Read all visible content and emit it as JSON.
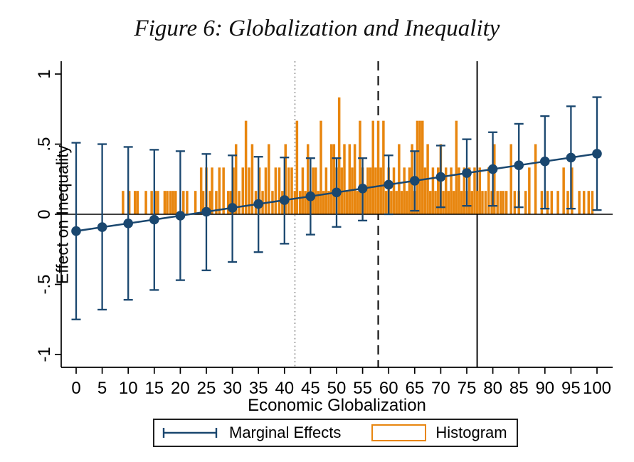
{
  "figure": {
    "title": "Figure 6: Globalization and Inequality"
  },
  "colors": {
    "marginal_effects": "#1a476f",
    "histogram": "#e8860f",
    "axis": "#000000",
    "background": "#ffffff"
  },
  "chart_data": {
    "type": "composite",
    "subtypes": [
      "line-with-error-bars",
      "histogram-bar"
    ],
    "title": "Figure 6: Globalization and Inequality",
    "xlabel": "Economic Globalization",
    "ylabel": "Effect on Inequality",
    "xlim": [
      -3,
      103
    ],
    "ylim": [
      -1.09,
      1.09
    ],
    "grid": "off",
    "x_ticks": {
      "values": [
        0,
        5,
        10,
        15,
        20,
        25,
        30,
        35,
        40,
        45,
        50,
        55,
        60,
        65,
        70,
        75,
        80,
        85,
        90,
        95,
        100
      ],
      "labels": [
        "0",
        "5",
        "10",
        "15",
        "20",
        "25",
        "30",
        "35",
        "40",
        "45",
        "50",
        "55",
        "60",
        "65",
        "70",
        "75",
        "80",
        "85",
        "90",
        "95",
        "100"
      ]
    },
    "y_ticks": {
      "values": [
        1,
        0.5,
        0,
        -0.5,
        -1
      ],
      "labels": [
        "1",
        ".5",
        "0",
        "-.5",
        "-1"
      ]
    },
    "zero_line": {
      "y": 0,
      "color": "#000000"
    },
    "reference_lines": [
      {
        "x": 42,
        "style": "dotted",
        "color": "#9a9a9a"
      },
      {
        "x": 58,
        "style": "dashed",
        "color": "#1c1c1c"
      },
      {
        "x": 77,
        "style": "solid",
        "color": "#2e2e2e"
      }
    ],
    "series": [
      {
        "name": "Marginal Effects",
        "type": "line+errorbar",
        "color": "#1a476f",
        "x": [
          0,
          5,
          10,
          15,
          20,
          25,
          30,
          35,
          40,
          45,
          50,
          55,
          60,
          65,
          70,
          75,
          80,
          85,
          90,
          95,
          100
        ],
        "y": [
          -0.12,
          -0.092,
          -0.065,
          -0.038,
          -0.01,
          0.018,
          0.046,
          0.073,
          0.101,
          0.128,
          0.156,
          0.184,
          0.211,
          0.239,
          0.266,
          0.294,
          0.322,
          0.349,
          0.377,
          0.404,
          0.432
        ],
        "ci_low": [
          -0.75,
          -0.68,
          -0.61,
          -0.54,
          -0.47,
          -0.4,
          -0.34,
          -0.27,
          -0.21,
          -0.145,
          -0.09,
          -0.045,
          0.0,
          0.025,
          0.05,
          0.06,
          0.06,
          0.05,
          0.04,
          0.04,
          0.03
        ],
        "ci_high": [
          0.51,
          0.5,
          0.48,
          0.46,
          0.45,
          0.43,
          0.42,
          0.41,
          0.405,
          0.4,
          0.4,
          0.4,
          0.42,
          0.45,
          0.49,
          0.535,
          0.585,
          0.645,
          0.7,
          0.77,
          0.835
        ]
      },
      {
        "name": "Histogram",
        "type": "bar",
        "color": "#e8860f",
        "bin_width": 0.5,
        "count_unit_height": 0.1667,
        "bars": [
          [
            9.0,
            1
          ],
          [
            10.2,
            1
          ],
          [
            11.3,
            1
          ],
          [
            11.8,
            1
          ],
          [
            13.4,
            1
          ],
          [
            14.5,
            1
          ],
          [
            15.2,
            1
          ],
          [
            15.7,
            1
          ],
          [
            17.0,
            1
          ],
          [
            17.5,
            1
          ],
          [
            18.1,
            1
          ],
          [
            18.6,
            1
          ],
          [
            19.1,
            1
          ],
          [
            20.6,
            1
          ],
          [
            21.3,
            1
          ],
          [
            22.9,
            1
          ],
          [
            24.0,
            2
          ],
          [
            24.4,
            1
          ],
          [
            25.0,
            2
          ],
          [
            25.7,
            1
          ],
          [
            26.1,
            2
          ],
          [
            26.9,
            1
          ],
          [
            27.5,
            2
          ],
          [
            28.3,
            2
          ],
          [
            29.2,
            1
          ],
          [
            29.7,
            1
          ],
          [
            30.2,
            2
          ],
          [
            30.7,
            3
          ],
          [
            31.3,
            1
          ],
          [
            32.0,
            2
          ],
          [
            32.6,
            4
          ],
          [
            33.2,
            2
          ],
          [
            33.8,
            3
          ],
          [
            34.5,
            1
          ],
          [
            35.2,
            2
          ],
          [
            35.8,
            1
          ],
          [
            36.4,
            2
          ],
          [
            37.0,
            3
          ],
          [
            37.7,
            1
          ],
          [
            38.3,
            2
          ],
          [
            39.0,
            2
          ],
          [
            39.6,
            1
          ],
          [
            40.2,
            3
          ],
          [
            40.8,
            2
          ],
          [
            41.4,
            2
          ],
          [
            42.0,
            1
          ],
          [
            42.4,
            4
          ],
          [
            43.0,
            1
          ],
          [
            43.5,
            2
          ],
          [
            44.0,
            1
          ],
          [
            44.5,
            3
          ],
          [
            45.0,
            1
          ],
          [
            45.5,
            2
          ],
          [
            46.0,
            2
          ],
          [
            46.5,
            1
          ],
          [
            47.0,
            4
          ],
          [
            47.5,
            1
          ],
          [
            48.0,
            2
          ],
          [
            48.5,
            1
          ],
          [
            49.0,
            3
          ],
          [
            49.5,
            3
          ],
          [
            50.0,
            2
          ],
          [
            50.5,
            5
          ],
          [
            51.0,
            2
          ],
          [
            51.5,
            3
          ],
          [
            52.0,
            1
          ],
          [
            52.5,
            3
          ],
          [
            53.0,
            2
          ],
          [
            53.5,
            3
          ],
          [
            54.0,
            1
          ],
          [
            54.5,
            4
          ],
          [
            55.0,
            2
          ],
          [
            55.5,
            1
          ],
          [
            56.0,
            2
          ],
          [
            56.5,
            2
          ],
          [
            57.0,
            4
          ],
          [
            57.5,
            2
          ],
          [
            58.0,
            4
          ],
          [
            58.5,
            2
          ],
          [
            59.0,
            4
          ],
          [
            59.5,
            1
          ],
          [
            60.0,
            2
          ],
          [
            60.5,
            1
          ],
          [
            61.0,
            2
          ],
          [
            61.5,
            1
          ],
          [
            62.0,
            3
          ],
          [
            62.5,
            1
          ],
          [
            63.0,
            2
          ],
          [
            63.5,
            1
          ],
          [
            64.0,
            2
          ],
          [
            64.5,
            3
          ],
          [
            65.0,
            1
          ],
          [
            65.5,
            4
          ],
          [
            66.0,
            4
          ],
          [
            66.5,
            4
          ],
          [
            67.0,
            2
          ],
          [
            67.5,
            3
          ],
          [
            68.0,
            1
          ],
          [
            68.5,
            2
          ],
          [
            69.0,
            1
          ],
          [
            69.5,
            2
          ],
          [
            70.0,
            3
          ],
          [
            70.5,
            1
          ],
          [
            71.0,
            2
          ],
          [
            71.5,
            1
          ],
          [
            72.0,
            2
          ],
          [
            72.5,
            1
          ],
          [
            73.0,
            4
          ],
          [
            73.5,
            2
          ],
          [
            74.0,
            1
          ],
          [
            74.5,
            2
          ],
          [
            75.0,
            1
          ],
          [
            75.5,
            2
          ],
          [
            76.0,
            1
          ],
          [
            76.5,
            2
          ],
          [
            77.0,
            1
          ],
          [
            77.5,
            2
          ],
          [
            78.0,
            1
          ],
          [
            78.6,
            1
          ],
          [
            79.2,
            2
          ],
          [
            79.8,
            1
          ],
          [
            80.3,
            3
          ],
          [
            80.9,
            1
          ],
          [
            81.5,
            1
          ],
          [
            82.0,
            1
          ],
          [
            82.6,
            1
          ],
          [
            83.5,
            3
          ],
          [
            84.2,
            1
          ],
          [
            85.0,
            1
          ],
          [
            86.3,
            1
          ],
          [
            87.0,
            2
          ],
          [
            88.2,
            3
          ],
          [
            89.4,
            1
          ],
          [
            90.5,
            1
          ],
          [
            91.3,
            1
          ],
          [
            92.5,
            1
          ],
          [
            93.6,
            2
          ],
          [
            94.4,
            1
          ],
          [
            95.2,
            2
          ],
          [
            96.6,
            1
          ],
          [
            97.5,
            1
          ],
          [
            98.4,
            1
          ],
          [
            99.1,
            1
          ]
        ]
      }
    ],
    "legend": {
      "position": "bottom",
      "items": [
        {
          "label": "Marginal Effects",
          "symbol": "error-bar"
        },
        {
          "label": "Histogram",
          "symbol": "outlined-box"
        }
      ]
    }
  }
}
